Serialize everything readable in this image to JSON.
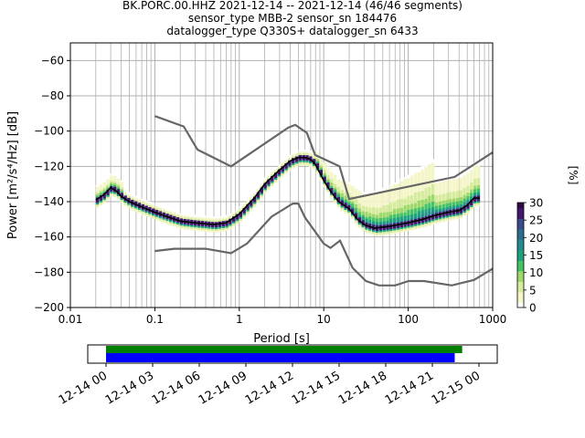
{
  "title_lines": [
    "BK.PORC.00.HHZ   2021-12-14 -- 2021-12-14  (46/46 segments)",
    "sensor_type MBB-2 sensor_sn 184476",
    "datalogger_type Q330S+ datalogger_sn 6433"
  ],
  "chart_data": {
    "type": "heatmap",
    "xlabel": "Period [s]",
    "ylabel": "Power [m²/s⁴/Hz] [dB]",
    "xscale": "log",
    "xlim": [
      0.01,
      1000
    ],
    "ylim": [
      -200,
      -50
    ],
    "x_ticks": [
      0.01,
      0.1,
      1,
      10,
      100,
      1000
    ],
    "x_tick_labels": [
      "0.01",
      "0.1",
      "1",
      "10",
      "100",
      "1000"
    ],
    "y_ticks": [
      -200,
      -180,
      -160,
      -140,
      -120,
      -100,
      -80,
      -60
    ],
    "y_tick_labels": [
      "−200",
      "−180",
      "−160",
      "−140",
      "−120",
      "−100",
      "−80",
      "−60"
    ],
    "grid": true,
    "colorbar": {
      "label": "[%]",
      "range": [
        0,
        30
      ],
      "ticks": [
        0,
        5,
        10,
        15,
        20,
        25,
        30
      ],
      "tick_labels": [
        "0",
        "5",
        "10",
        "15",
        "20",
        "25",
        "30"
      ],
      "colors": [
        "#ffffff",
        "#f4f6c8",
        "#d6ec9c",
        "#9fd86a",
        "#44c266",
        "#1da27d",
        "#228c8d",
        "#2c6d8e",
        "#3b4a8a",
        "#40176e",
        "#300a45"
      ]
    },
    "series": [
      {
        "name": "Mode (black curve)",
        "color": "#000000",
        "x": [
          0.02,
          0.025,
          0.03,
          0.035,
          0.04,
          0.05,
          0.07,
          0.1,
          0.15,
          0.2,
          0.3,
          0.5,
          0.7,
          1,
          1.5,
          2,
          3,
          4,
          5,
          6,
          7,
          8,
          10,
          12,
          15,
          20,
          25,
          30,
          40,
          60,
          100,
          150,
          200,
          300,
          400,
          500,
          600,
          700
        ],
        "values": [
          -139,
          -136,
          -132,
          -134,
          -137,
          -140,
          -143,
          -146,
          -149,
          -151,
          -152,
          -153,
          -152,
          -147,
          -138,
          -130,
          -122,
          -117,
          -115,
          -115,
          -116,
          -119,
          -128,
          -134,
          -140,
          -144,
          -150,
          -153,
          -155,
          -154,
          -152,
          -150,
          -148,
          -146,
          -145,
          -142,
          -138,
          -138
        ]
      },
      {
        "name": "NHNM",
        "color": "#666666",
        "x": [
          0.1,
          0.22,
          0.32,
          0.8,
          3.8,
          4.6,
          6.3,
          7.9,
          15.4,
          20,
          354.8,
          1000
        ],
        "values": [
          -91.5,
          -97.4,
          -110.5,
          -120,
          -98,
          -96.5,
          -101,
          -113.5,
          -120,
          -138.5,
          -126,
          -112
        ]
      },
      {
        "name": "NLNM",
        "color": "#666666",
        "x": [
          0.1,
          0.17,
          0.4,
          0.8,
          1.24,
          2.4,
          4.3,
          5,
          6,
          10,
          12,
          15.6,
          21.9,
          31.6,
          45,
          70,
          101,
          154,
          328,
          600,
          1000
        ],
        "values": [
          -168,
          -166.7,
          -166.7,
          -169.2,
          -163.7,
          -148.6,
          -141.1,
          -141.1,
          -149,
          -163.8,
          -166.2,
          -162.1,
          -177.5,
          -185,
          -187.5,
          -187.5,
          -185,
          -185,
          -187.5,
          -184.4,
          -178
        ]
      }
    ],
    "availability": {
      "x_ticks": [
        "12-14 00",
        "12-14 03",
        "12-14 06",
        "12-14 09",
        "12-14 12",
        "12-14 15",
        "12-14 18",
        "12-14 21",
        "12-15 00"
      ],
      "data_bar_color": "#008000",
      "used_bar_color": "#0000ff",
      "data_coverage": [
        0.0,
        0.955
      ],
      "used_coverage": [
        0.0,
        0.935
      ]
    }
  }
}
